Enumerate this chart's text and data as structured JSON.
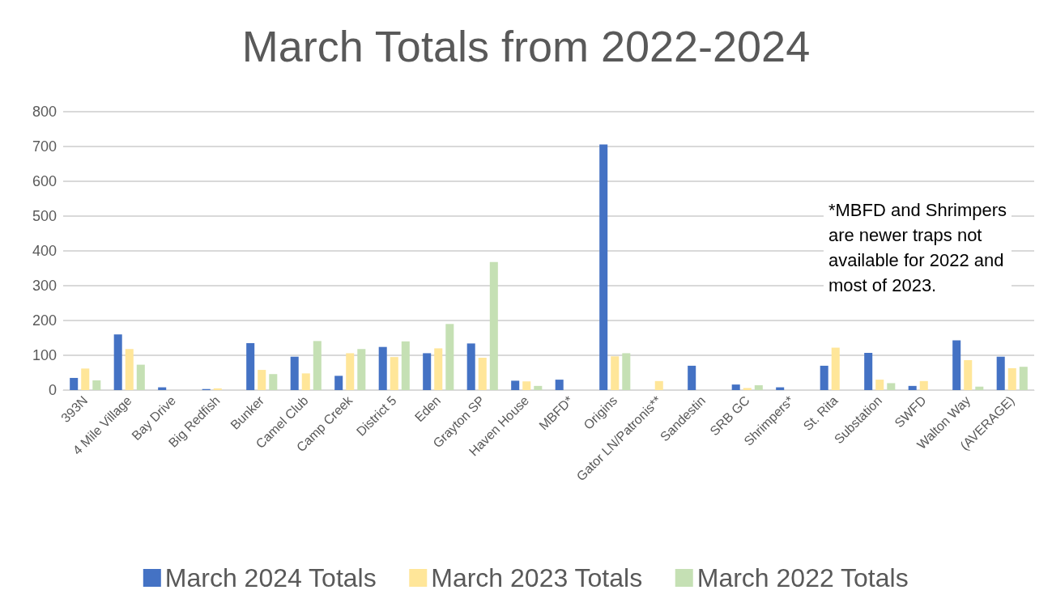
{
  "chart_data": {
    "type": "bar",
    "title": "March Totals from 2022-2024",
    "categories": [
      "393N",
      "4 Mile Village",
      "Bay Drive",
      "Big Redfish",
      "Bunker",
      "Camel Club",
      "Camp Creek",
      "District 5",
      "Eden",
      "Grayton SP",
      "Haven House",
      "MBFD*",
      "Origins",
      "Gator LN/Patronis**",
      "Sandestin",
      "SRB GC",
      "Shrimpers*",
      "St. Rita",
      "Substation",
      "SWFD",
      "Walton Way",
      "(AVERAGE)"
    ],
    "series": [
      {
        "name": "March 2024 Totals",
        "color": "#4472c4",
        "values": [
          35,
          160,
          8,
          3,
          135,
          96,
          41,
          124,
          106,
          134,
          27,
          30,
          706,
          0,
          70,
          16,
          8,
          70,
          107,
          12,
          143,
          96
        ]
      },
      {
        "name": "March 2023 Totals",
        "color": "#ffe699",
        "values": [
          62,
          118,
          0,
          5,
          58,
          48,
          106,
          95,
          120,
          93,
          25,
          null,
          97,
          26,
          0,
          6,
          null,
          122,
          30,
          26,
          86,
          63
        ]
      },
      {
        "name": "March 2022 Totals",
        "color": "#c5e0b4",
        "values": [
          28,
          73,
          0,
          null,
          46,
          141,
          118,
          140,
          190,
          368,
          12,
          null,
          106,
          null,
          null,
          14,
          null,
          0,
          20,
          null,
          10,
          67
        ]
      }
    ],
    "ylim": [
      0,
      800
    ],
    "yticks": [
      0,
      100,
      200,
      300,
      400,
      500,
      600,
      700,
      800
    ],
    "grid": "y",
    "legend": "bottom",
    "annotations": [
      "*MBFD and Shrimpers\nare newer traps not\navailable for 2022 and\nmost of 2023."
    ]
  }
}
